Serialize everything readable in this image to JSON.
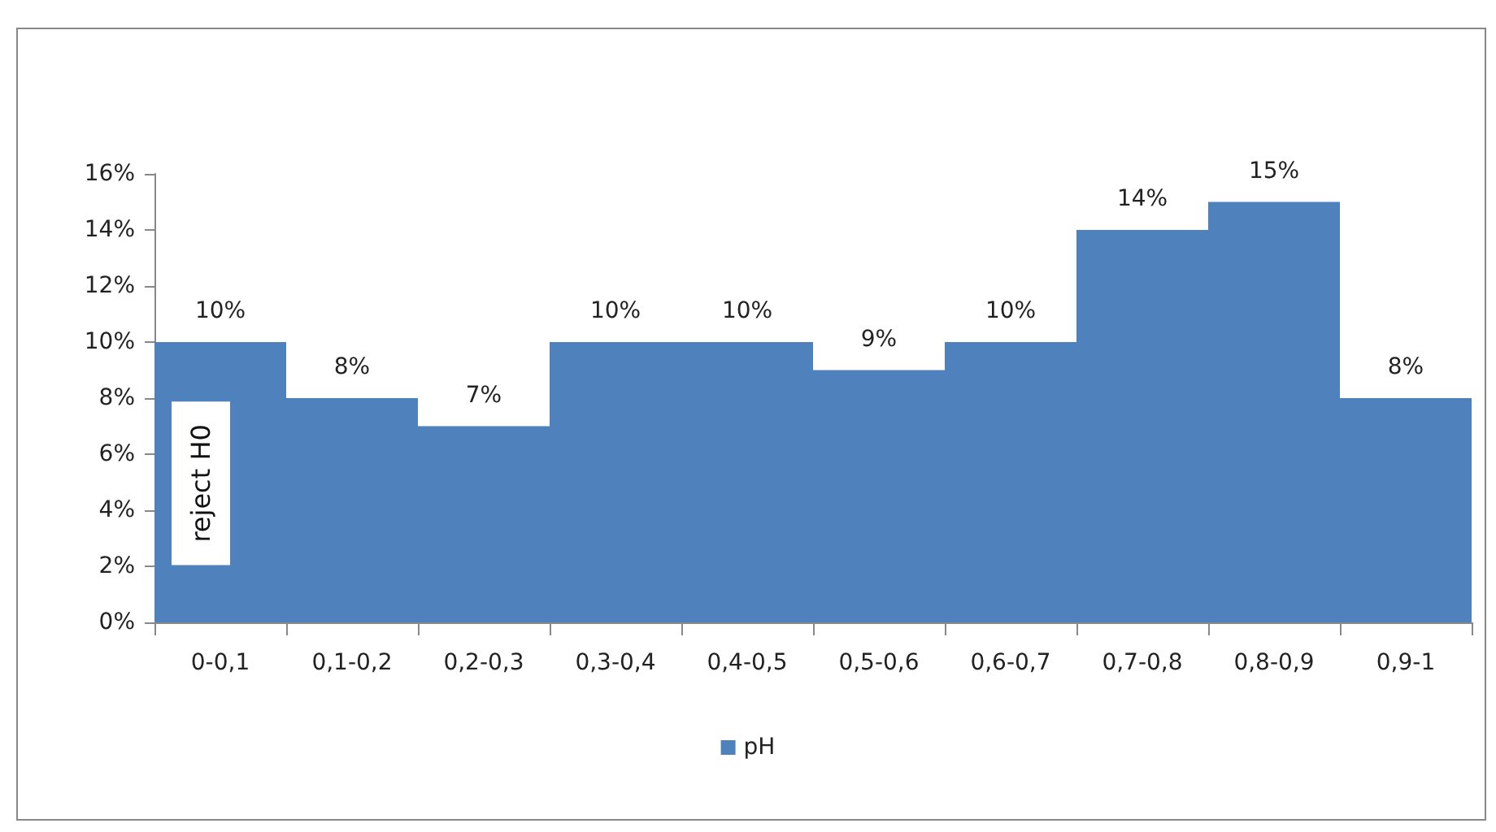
{
  "chart_data": {
    "type": "bar",
    "categories": [
      "0-0,1",
      "0,1-0,2",
      "0,2-0,3",
      "0,3-0,4",
      "0,4-0,5",
      "0,5-0,6",
      "0,6-0,7",
      "0,7-0,8",
      "0,8-0,9",
      "0,9-1"
    ],
    "series": [
      {
        "name": "pH",
        "color": "#4f81bd",
        "values": [
          10,
          8,
          7,
          10,
          10,
          9,
          10,
          14,
          15,
          8
        ],
        "value_labels": [
          "10%",
          "8%",
          "7%",
          "10%",
          "10%",
          "9%",
          "10%",
          "14%",
          "15%",
          "8%"
        ]
      }
    ],
    "ylim": [
      0,
      16
    ],
    "yticks": [
      {
        "value": 0,
        "label": "0%"
      },
      {
        "value": 2,
        "label": "2%"
      },
      {
        "value": 4,
        "label": "4%"
      },
      {
        "value": 6,
        "label": "6%"
      },
      {
        "value": 8,
        "label": "8%"
      },
      {
        "value": 10,
        "label": "10%"
      },
      {
        "value": 12,
        "label": "12%"
      },
      {
        "value": 14,
        "label": "14%"
      },
      {
        "value": 16,
        "label": "16%"
      }
    ],
    "annotations": [
      "reject H0"
    ],
    "grid": false,
    "legend": "bottom"
  }
}
